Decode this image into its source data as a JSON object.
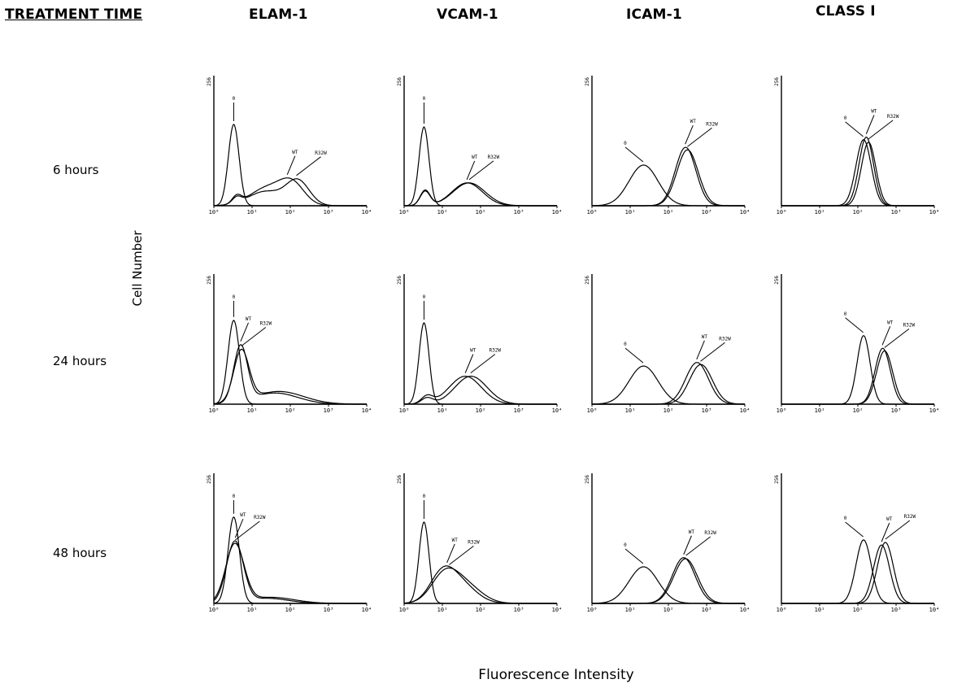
{
  "headers": {
    "treatment": "TREATMENT TIME",
    "columns": [
      "ELAM-1",
      "VCAM-1",
      "ICAM-1",
      "CLASS I"
    ]
  },
  "rows": [
    "6 hours",
    "24 hours",
    "48 hours"
  ],
  "ylabel": "Cell Number",
  "xlabel": "Fluorescence Intensity",
  "chart_data": {
    "type": "line",
    "xscale": "log",
    "xlim": [
      1,
      10000
    ],
    "x_ticks": [
      "10⁰",
      "10¹",
      "10²",
      "10³",
      "10⁴"
    ],
    "y_tick_top": "256",
    "ylim": [
      0,
      256
    ],
    "panels": [
      {
        "row": "6 hours",
        "column": "ELAM-1",
        "series": [
          {
            "name": "0",
            "label": "0",
            "peaks": [
              {
                "logx": 0.52,
                "h": 160,
                "w": 0.14
              }
            ]
          },
          {
            "name": "WT",
            "label": "WT",
            "peaks": [
              {
                "logx": 0.6,
                "h": 15,
                "w": 0.12
              },
              {
                "logx": 1.4,
                "h": 35,
                "w": 0.45
              },
              {
                "logx": 2.05,
                "h": 40,
                "w": 0.32
              }
            ]
          },
          {
            "name": "R32W",
            "label": "R32W",
            "peaks": [
              {
                "logx": 0.6,
                "h": 12,
                "w": 0.12
              },
              {
                "logx": 1.35,
                "h": 28,
                "w": 0.45
              },
              {
                "logx": 2.2,
                "h": 48,
                "w": 0.3
              }
            ]
          }
        ]
      },
      {
        "row": "6 hours",
        "column": "VCAM-1",
        "series": [
          {
            "name": "0",
            "label": "0",
            "peaks": [
              {
                "logx": 0.52,
                "h": 155,
                "w": 0.13
              }
            ]
          },
          {
            "name": "WT",
            "label": "WT",
            "peaks": [
              {
                "logx": 0.55,
                "h": 30,
                "w": 0.13
              },
              {
                "logx": 1.65,
                "h": 45,
                "w": 0.4
              }
            ]
          },
          {
            "name": "R32W",
            "label": "R32W",
            "peaks": [
              {
                "logx": 0.55,
                "h": 28,
                "w": 0.13
              },
              {
                "logx": 1.7,
                "h": 45,
                "w": 0.42
              }
            ]
          }
        ]
      },
      {
        "row": "6 hours",
        "column": "ICAM-1",
        "series": [
          {
            "name": "0",
            "label": "0",
            "peaks": [
              {
                "logx": 1.35,
                "h": 80,
                "w": 0.38
              }
            ]
          },
          {
            "name": "WT",
            "label": "WT",
            "peaks": [
              {
                "logx": 2.45,
                "h": 115,
                "w": 0.27
              }
            ]
          },
          {
            "name": "R32W",
            "label": "R32W",
            "peaks": [
              {
                "logx": 2.5,
                "h": 110,
                "w": 0.28
              }
            ]
          }
        ]
      },
      {
        "row": "6 hours",
        "column": "CLASS I",
        "series": [
          {
            "name": "0",
            "label": "0",
            "peaks": [
              {
                "logx": 2.15,
                "h": 130,
                "w": 0.2
              }
            ]
          },
          {
            "name": "WT",
            "label": "WT",
            "peaks": [
              {
                "logx": 2.22,
                "h": 135,
                "w": 0.19
              }
            ]
          },
          {
            "name": "R32W",
            "label": "R32W",
            "peaks": [
              {
                "logx": 2.28,
                "h": 125,
                "w": 0.19
              }
            ]
          }
        ]
      },
      {
        "row": "24 hours",
        "column": "ELAM-1",
        "series": [
          {
            "name": "0",
            "label": "0",
            "peaks": [
              {
                "logx": 0.52,
                "h": 165,
                "w": 0.15
              }
            ]
          },
          {
            "name": "WT",
            "label": "WT",
            "peaks": [
              {
                "logx": 0.7,
                "h": 110,
                "w": 0.18
              },
              {
                "logx": 1.6,
                "h": 22,
                "w": 0.6
              }
            ]
          },
          {
            "name": "R32W",
            "label": "R32W",
            "peaks": [
              {
                "logx": 0.72,
                "h": 100,
                "w": 0.2
              },
              {
                "logx": 1.7,
                "h": 25,
                "w": 0.65
              }
            ]
          }
        ]
      },
      {
        "row": "24 hours",
        "column": "VCAM-1",
        "series": [
          {
            "name": "0",
            "label": "0",
            "peaks": [
              {
                "logx": 0.52,
                "h": 160,
                "w": 0.13
              }
            ]
          },
          {
            "name": "WT",
            "label": "WT",
            "peaks": [
              {
                "logx": 0.6,
                "h": 15,
                "w": 0.15
              },
              {
                "logx": 1.6,
                "h": 55,
                "w": 0.42
              }
            ]
          },
          {
            "name": "R32W",
            "label": "R32W",
            "peaks": [
              {
                "logx": 0.6,
                "h": 12,
                "w": 0.15
              },
              {
                "logx": 1.75,
                "h": 55,
                "w": 0.42
              }
            ]
          }
        ]
      },
      {
        "row": "24 hours",
        "column": "ICAM-1",
        "series": [
          {
            "name": "0",
            "label": "0",
            "peaks": [
              {
                "logx": 1.35,
                "h": 75,
                "w": 0.38
              }
            ]
          },
          {
            "name": "WT",
            "label": "WT",
            "peaks": [
              {
                "logx": 2.75,
                "h": 82,
                "w": 0.3
              }
            ]
          },
          {
            "name": "R32W",
            "label": "R32W",
            "peaks": [
              {
                "logx": 2.85,
                "h": 78,
                "w": 0.3
              }
            ]
          }
        ]
      },
      {
        "row": "24 hours",
        "column": "CLASS I",
        "series": [
          {
            "name": "0",
            "label": "0",
            "peaks": [
              {
                "logx": 2.15,
                "h": 135,
                "w": 0.17
              }
            ]
          },
          {
            "name": "WT",
            "label": "WT",
            "peaks": [
              {
                "logx": 2.65,
                "h": 110,
                "w": 0.2
              }
            ]
          },
          {
            "name": "R32W",
            "label": "R32W",
            "peaks": [
              {
                "logx": 2.7,
                "h": 105,
                "w": 0.21
              }
            ]
          }
        ]
      },
      {
        "row": "48 hours",
        "column": "ELAM-1",
        "series": [
          {
            "name": "0",
            "label": "0",
            "peaks": [
              {
                "logx": 0.52,
                "h": 170,
                "w": 0.15
              }
            ]
          },
          {
            "name": "WT",
            "label": "WT",
            "peaks": [
              {
                "logx": 0.55,
                "h": 120,
                "w": 0.22
              },
              {
                "logx": 1.4,
                "h": 10,
                "w": 0.55
              }
            ]
          },
          {
            "name": "R32W",
            "label": "R32W",
            "peaks": [
              {
                "logx": 0.55,
                "h": 115,
                "w": 0.24
              },
              {
                "logx": 1.5,
                "h": 12,
                "w": 0.6
              }
            ]
          }
        ]
      },
      {
        "row": "48 hours",
        "column": "VCAM-1",
        "series": [
          {
            "name": "0",
            "label": "0",
            "peaks": [
              {
                "logx": 0.52,
                "h": 160,
                "w": 0.13
              }
            ]
          },
          {
            "name": "WT",
            "label": "WT",
            "peaks": [
              {
                "logx": 1.0,
                "h": 55,
                "w": 0.33
              },
              {
                "logx": 1.5,
                "h": 35,
                "w": 0.4
              }
            ]
          },
          {
            "name": "R32W",
            "label": "R32W",
            "peaks": [
              {
                "logx": 1.05,
                "h": 52,
                "w": 0.35
              },
              {
                "logx": 1.6,
                "h": 35,
                "w": 0.42
              }
            ]
          }
        ]
      },
      {
        "row": "48 hours",
        "column": "ICAM-1",
        "series": [
          {
            "name": "0",
            "label": "0",
            "peaks": [
              {
                "logx": 1.35,
                "h": 72,
                "w": 0.38
              }
            ]
          },
          {
            "name": "WT",
            "label": "WT",
            "peaks": [
              {
                "logx": 2.4,
                "h": 90,
                "w": 0.3
              }
            ]
          },
          {
            "name": "R32W",
            "label": "R32W",
            "peaks": [
              {
                "logx": 2.45,
                "h": 88,
                "w": 0.31
              }
            ]
          }
        ]
      },
      {
        "row": "48 hours",
        "column": "CLASS I",
        "series": [
          {
            "name": "0",
            "label": "0",
            "peaks": [
              {
                "logx": 2.15,
                "h": 125,
                "w": 0.2
              }
            ]
          },
          {
            "name": "WT",
            "label": "WT",
            "peaks": [
              {
                "logx": 2.62,
                "h": 115,
                "w": 0.21
              }
            ]
          },
          {
            "name": "R32W",
            "label": "R32W",
            "peaks": [
              {
                "logx": 2.72,
                "h": 120,
                "w": 0.21
              }
            ]
          }
        ]
      }
    ]
  }
}
